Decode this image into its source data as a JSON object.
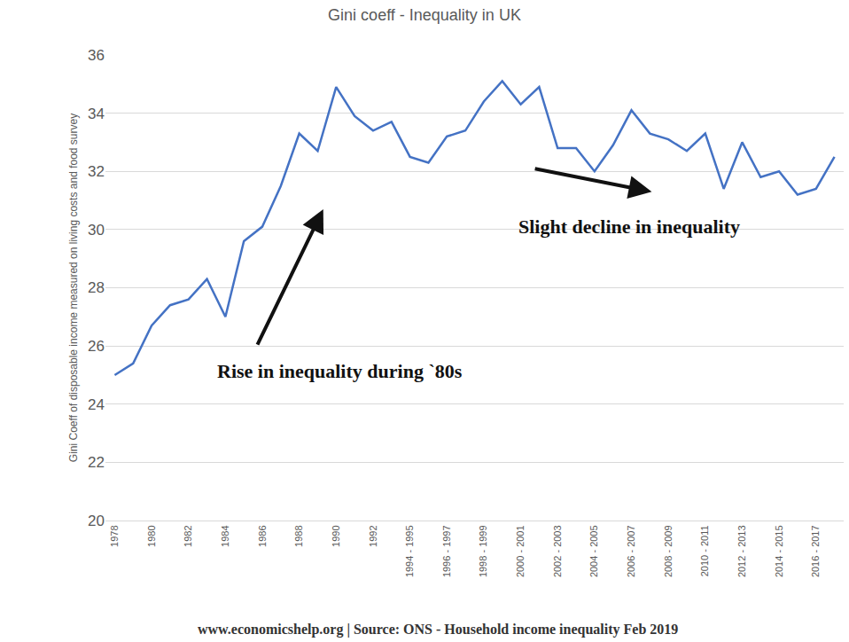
{
  "chart_data": {
    "type": "line",
    "title": "Gini coeff - Inequality in UK",
    "y_label": "Gini Coeff of disposable income measured on living costs and food survey",
    "categories": [
      "1978",
      null,
      "1980",
      null,
      "1982",
      null,
      "1984",
      null,
      "1986",
      null,
      "1988",
      null,
      "1990",
      null,
      "1992",
      null,
      "1994 - 1995",
      null,
      "1996 - 1997",
      null,
      "1998 - 1999",
      null,
      "2000 - 2001",
      null,
      "2002 - 2003",
      null,
      "2004 - 2005",
      null,
      "2006 - 2007",
      null,
      "2008 - 2009",
      null,
      "2010 - 2011",
      null,
      "2012 - 2013",
      null,
      "2014 - 2015",
      null,
      "2016 - 2017",
      null
    ],
    "values": [
      25.0,
      25.4,
      26.7,
      27.4,
      27.6,
      28.3,
      27.0,
      29.6,
      30.1,
      31.5,
      33.3,
      32.7,
      34.9,
      33.9,
      33.4,
      33.7,
      32.5,
      32.3,
      33.2,
      33.4,
      34.4,
      35.1,
      34.3,
      34.9,
      32.8,
      32.8,
      32.0,
      32.9,
      34.1,
      33.3,
      33.1,
      32.7,
      33.3,
      31.4,
      33.0,
      31.8,
      32.0,
      31.2,
      31.4,
      32.5
    ],
    "color": "#4472c4",
    "ylim": [
      20,
      36
    ],
    "yticks": [
      20,
      22,
      24,
      26,
      28,
      30,
      32,
      34,
      36
    ],
    "grid": true,
    "annotations": [
      "Rise in inequality during `80s",
      "Slight decline in inequality"
    ],
    "source": "www.economicshelp.org | Source: ONS - Household income inequality Feb 2019"
  }
}
